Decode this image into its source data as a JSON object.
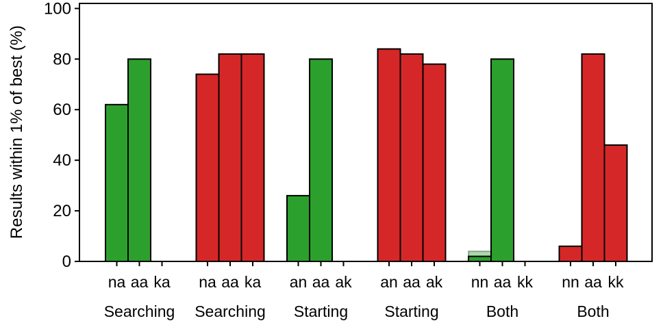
{
  "chart_data": {
    "type": "bar",
    "ylabel": "Results within 1% of best (%)",
    "ylim": [
      0,
      102
    ],
    "yticks": [
      0,
      20,
      40,
      60,
      80,
      100
    ],
    "grid": false,
    "groups": [
      {
        "label": "Searching",
        "color": "#2ca02c",
        "bars": [
          {
            "category": "na",
            "value": 62
          },
          {
            "category": "aa",
            "value": 80
          },
          {
            "category": "ka",
            "value": 0
          }
        ]
      },
      {
        "label": "Searching",
        "color": "#d62728",
        "bars": [
          {
            "category": "na",
            "value": 74
          },
          {
            "category": "aa",
            "value": 82
          },
          {
            "category": "ka",
            "value": 82
          }
        ]
      },
      {
        "label": "Starting",
        "color": "#2ca02c",
        "bars": [
          {
            "category": "an",
            "value": 26
          },
          {
            "category": "aa",
            "value": 80
          },
          {
            "category": "ak",
            "value": 0
          }
        ]
      },
      {
        "label": "Starting",
        "color": "#d62728",
        "bars": [
          {
            "category": "an",
            "value": 84
          },
          {
            "category": "aa",
            "value": 82
          },
          {
            "category": "ak",
            "value": 78
          }
        ]
      },
      {
        "label": "Both",
        "color": "#2ca02c",
        "bars": [
          {
            "category": "nn",
            "value": 2,
            "ghost_value": 4
          },
          {
            "category": "aa",
            "value": 80
          },
          {
            "category": "kk",
            "value": 0
          }
        ]
      },
      {
        "label": "Both",
        "color": "#d62728",
        "bars": [
          {
            "category": "nn",
            "value": 6
          },
          {
            "category": "aa",
            "value": 82
          },
          {
            "category": "kk",
            "value": 46
          }
        ]
      }
    ]
  }
}
